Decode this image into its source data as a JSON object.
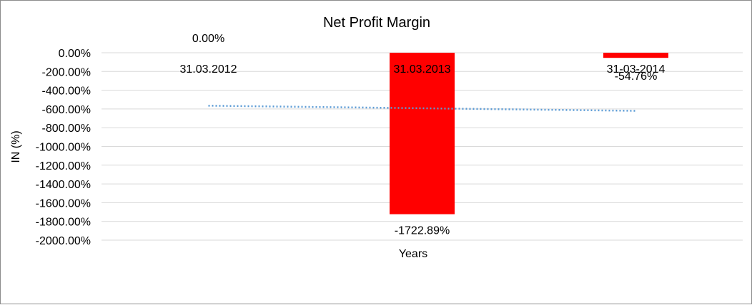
{
  "chart_data": {
    "type": "bar",
    "title": "Net Profit Margin",
    "xlabel": "Years",
    "ylabel": "IN (%)",
    "categories": [
      "31.03.2012",
      "31.03.2013",
      "31-03-2014"
    ],
    "values": [
      0.0,
      -1722.89,
      -54.76
    ],
    "value_labels": [
      "0.00%",
      "-1722.89%",
      "-54.76%"
    ],
    "ylim": [
      -2000,
      0
    ],
    "yticks": [
      0,
      -200,
      -400,
      -600,
      -800,
      -1000,
      -1200,
      -1400,
      -1600,
      -1800,
      -2000
    ],
    "ytick_labels": [
      "0.00%",
      "-200.00%",
      "-400.00%",
      "-600.00%",
      "-800.00%",
      "-1000.00%",
      "-1200.00%",
      "-1400.00%",
      "-1600.00%",
      "-1800.00%",
      "-2000.00%"
    ],
    "grid": true,
    "trendline": {
      "style": "dotted",
      "type": "linear"
    },
    "colors": {
      "bar": "#ff0000",
      "grid": "#d9d9d9",
      "trendline": "#5b9bd5",
      "border": "#8c8c8c"
    }
  }
}
